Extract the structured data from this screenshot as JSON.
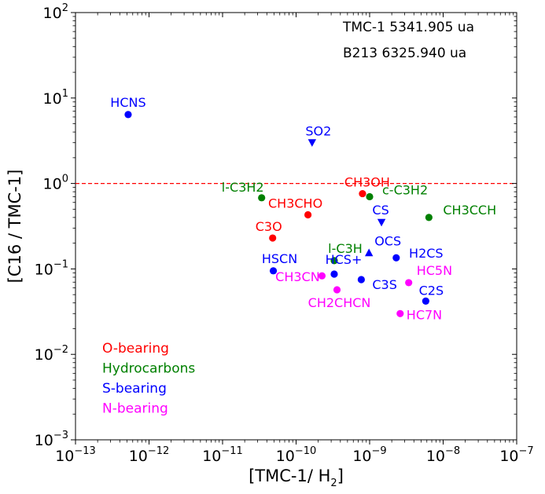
{
  "chart_data": {
    "type": "scatter",
    "title": "",
    "xlabel_prefix": "[TMC-1/ H",
    "xlabel_sub": "2",
    "xlabel_suffix": "]",
    "ylabel": "[C16 / TMC-1]",
    "x_scale": "log",
    "y_scale": "log",
    "xlim": [
      1e-13,
      1e-07
    ],
    "ylim": [
      0.001,
      100
    ],
    "x_ticks": [
      {
        "base": "10",
        "exp": "−13",
        "value": 1e-13
      },
      {
        "base": "10",
        "exp": "−12",
        "value": 1e-12
      },
      {
        "base": "10",
        "exp": "−11",
        "value": 1e-11
      },
      {
        "base": "10",
        "exp": "−10",
        "value": 1e-10
      },
      {
        "base": "10",
        "exp": "−9",
        "value": 1e-09
      },
      {
        "base": "10",
        "exp": "−8",
        "value": 1e-08
      },
      {
        "base": "10",
        "exp": "−7",
        "value": 1e-07
      }
    ],
    "y_ticks": [
      {
        "base": "10",
        "exp": "−3",
        "value": 0.001
      },
      {
        "base": "10",
        "exp": "−2",
        "value": 0.01
      },
      {
        "base": "10",
        "exp": "−1",
        "value": 0.1
      },
      {
        "base": "10",
        "exp": "0",
        "value": 1
      },
      {
        "base": "10",
        "exp": "1",
        "value": 10
      },
      {
        "base": "10",
        "exp": "2",
        "value": 100
      }
    ],
    "reference_line": {
      "y": 1.0,
      "color": "#ff0000",
      "style": "dashed"
    },
    "colors": {
      "O-bearing": "#ff0000",
      "Hydrocarbons": "#008000",
      "S-bearing": "#0000ff",
      "N-bearing": "#ff00ff"
    },
    "points": [
      {
        "label": "HCNS",
        "group": "S-bearing",
        "marker": "circle",
        "x": 5.2e-13,
        "y": 6.4
      },
      {
        "label": "SO2",
        "group": "S-bearing",
        "marker": "triangle-down",
        "x": 1.65e-10,
        "y": 3.0
      },
      {
        "label": "l-C3H2",
        "group": "Hydrocarbons",
        "marker": "circle",
        "x": 3.4e-11,
        "y": 0.68
      },
      {
        "label": "CH3OH",
        "group": "O-bearing",
        "marker": "circle",
        "x": 8e-10,
        "y": 0.76
      },
      {
        "label": "c-C3H2",
        "group": "Hydrocarbons",
        "marker": "circle",
        "x": 1e-09,
        "y": 0.7
      },
      {
        "label": "CH3CHO",
        "group": "O-bearing",
        "marker": "circle",
        "x": 1.45e-10,
        "y": 0.43
      },
      {
        "label": "CS",
        "group": "S-bearing",
        "marker": "triangle-down",
        "x": 1.45e-09,
        "y": 0.35
      },
      {
        "label": "CH3CCH",
        "group": "Hydrocarbons",
        "marker": "circle",
        "x": 6.4e-09,
        "y": 0.4
      },
      {
        "label": "C3O",
        "group": "O-bearing",
        "marker": "circle",
        "x": 4.8e-11,
        "y": 0.23
      },
      {
        "label": "l-C3H",
        "group": "Hydrocarbons",
        "marker": "circle",
        "x": 3.3e-10,
        "y": 0.125
      },
      {
        "label": "OCS",
        "group": "S-bearing",
        "marker": "triangle-up",
        "x": 9.8e-10,
        "y": 0.155
      },
      {
        "label": "H2CS",
        "group": "S-bearing",
        "marker": "circle",
        "x": 2.3e-09,
        "y": 0.135
      },
      {
        "label": "HSCN",
        "group": "S-bearing",
        "marker": "circle",
        "x": 4.9e-11,
        "y": 0.095
      },
      {
        "label": "CH3CN",
        "group": "N-bearing",
        "marker": "circle",
        "x": 2.25e-10,
        "y": 0.083
      },
      {
        "label": "HCS+",
        "group": "S-bearing",
        "marker": "circle",
        "x": 3.3e-10,
        "y": 0.087
      },
      {
        "label": "C3S",
        "group": "S-bearing",
        "marker": "circle",
        "x": 7.7e-10,
        "y": 0.075
      },
      {
        "label": "HC5N",
        "group": "N-bearing",
        "marker": "circle",
        "x": 3.4e-09,
        "y": 0.069
      },
      {
        "label": "CH2CHCN",
        "group": "N-bearing",
        "marker": "circle",
        "x": 3.6e-10,
        "y": 0.057
      },
      {
        "label": "C2S",
        "group": "S-bearing",
        "marker": "circle",
        "x": 5.8e-09,
        "y": 0.042
      },
      {
        "label": "HC7N",
        "group": "N-bearing",
        "marker": "circle",
        "x": 2.6e-09,
        "y": 0.03
      }
    ],
    "legend": {
      "position": "bottom-left",
      "entries": [
        "O-bearing",
        "Hydrocarbons",
        "S-bearing",
        "N-bearing"
      ]
    },
    "annotations": [
      "TMC-1 5341.905 ua",
      "B213 6325.940 ua"
    ],
    "annotation_position": "top-right",
    "grid": false
  }
}
